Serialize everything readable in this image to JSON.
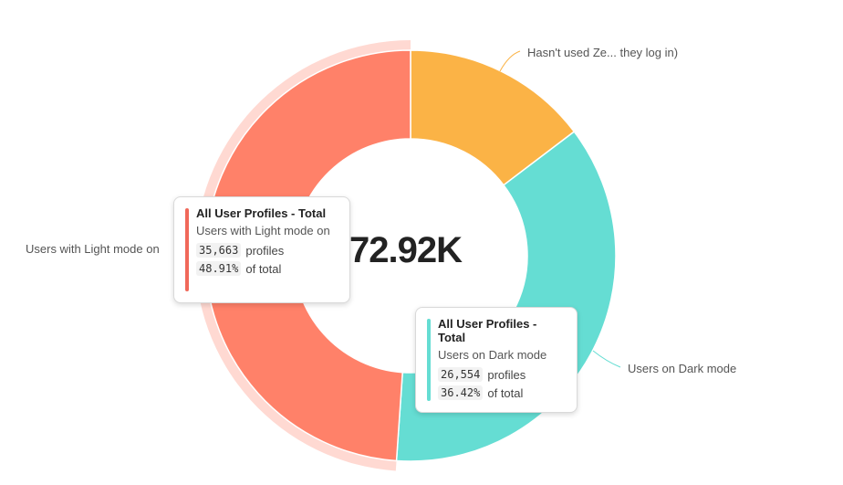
{
  "chart_data": {
    "type": "pie",
    "variant": "donut",
    "total_label": "72.92K",
    "slices": [
      {
        "label": "Hasn't used Ze... they log in)",
        "value": 10703,
        "color": "#FBB346"
      },
      {
        "label": "Users on Dark mode",
        "value": 26554,
        "color": "#65DDD3"
      },
      {
        "label": "Users with Light mode on",
        "value": 35663,
        "color": "#FF8169",
        "highlighted": true
      }
    ],
    "highlight_color": "#FFD9D2"
  },
  "tooltips": {
    "light": {
      "title": "All User Profiles - Total",
      "series": "Users with Light mode on",
      "count": "35,663",
      "count_unit": "profiles",
      "percent": "48.91%",
      "percent_suffix": "of total",
      "color": "#F0685A"
    },
    "dark": {
      "title": "All User Profiles - Total",
      "series": "Users on Dark mode",
      "count": "26,554",
      "count_unit": "profiles",
      "percent": "36.42%",
      "percent_suffix": "of total",
      "color": "#65DDD3"
    }
  }
}
